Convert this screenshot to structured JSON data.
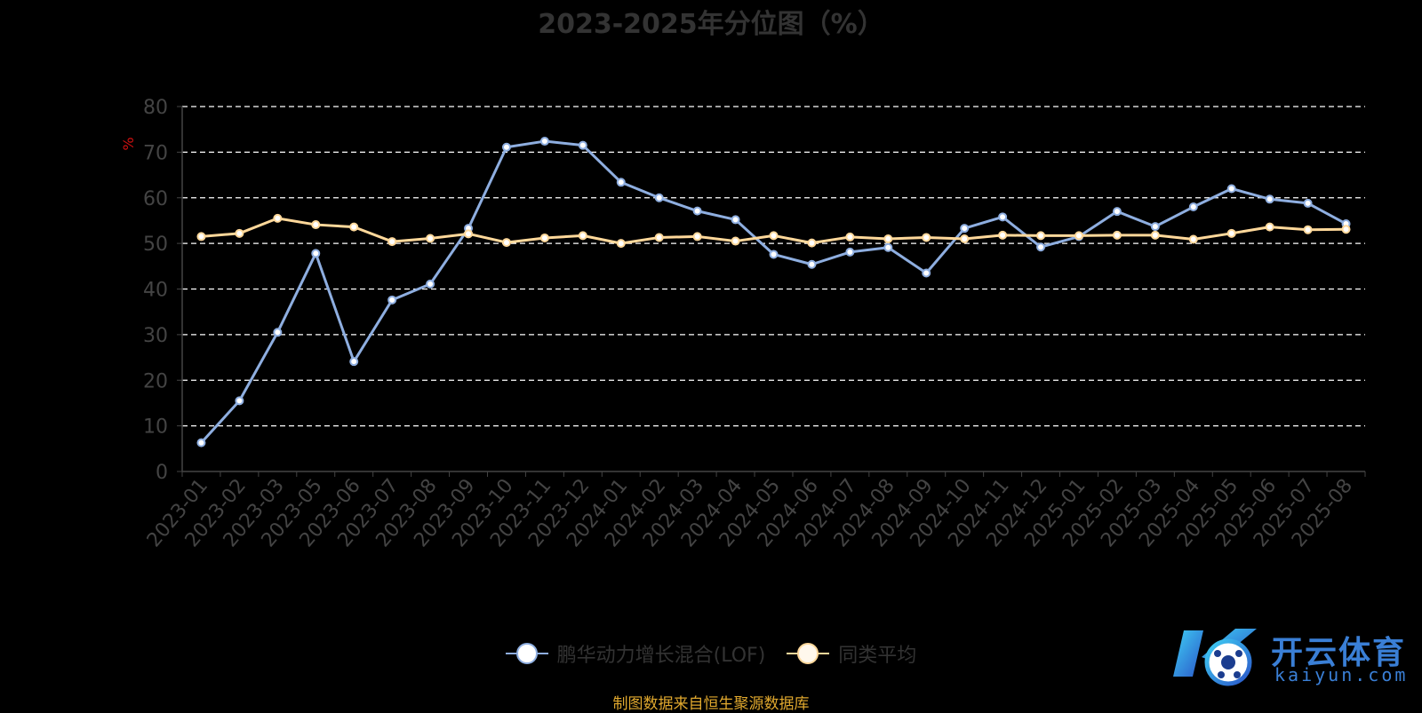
{
  "chart_data": {
    "type": "line",
    "title": "2023-2025年分位图（%）",
    "ylabel": "%",
    "xlabel": "",
    "ylim": [
      0,
      80
    ],
    "yticks": [
      0,
      10,
      20,
      30,
      40,
      50,
      60,
      70,
      80
    ],
    "grid": true,
    "legend_position": "bottom",
    "categories": [
      "2023-01",
      "2023-02",
      "2023-03",
      "2023-05",
      "2023-06",
      "2023-07",
      "2023-08",
      "2023-09",
      "2023-10",
      "2023-11",
      "2023-12",
      "2024-01",
      "2024-02",
      "2024-03",
      "2024-04",
      "2024-05",
      "2024-06",
      "2024-07",
      "2024-08",
      "2024-09",
      "2024-10",
      "2024-11",
      "2024-12",
      "2025-01",
      "2025-02",
      "2025-03",
      "2025-04",
      "2025-05",
      "2025-06",
      "2025-07",
      "2025-08"
    ],
    "series": [
      {
        "name": "鹏华动力增长混合(LOF)",
        "color": "#8eaee0",
        "values": [
          6.3,
          15.5,
          30.5,
          47.8,
          24.1,
          37.6,
          41.1,
          53.3,
          71.1,
          72.4,
          71.5,
          63.4,
          60.0,
          57.1,
          55.2,
          47.6,
          45.4,
          48.1,
          49.1,
          43.5,
          53.3,
          55.8,
          49.2,
          51.5,
          57.0,
          53.7,
          58.0,
          62.0,
          59.7,
          58.8,
          54.3
        ]
      },
      {
        "name": "同类平均",
        "color": "#ffd89a",
        "values": [
          51.5,
          52.2,
          55.5,
          54.1,
          53.6,
          50.4,
          51.1,
          52.1,
          50.2,
          51.2,
          51.7,
          50.0,
          51.3,
          51.5,
          50.5,
          51.7,
          50.1,
          51.4,
          51.0,
          51.3,
          51.0,
          51.8,
          51.7,
          51.7,
          51.8,
          51.8,
          50.9,
          52.2,
          53.6,
          53.0,
          53.1
        ]
      }
    ]
  },
  "source": "制图数据来自恒生聚源数据库",
  "logo": {
    "name": "开云体育",
    "domain": "kaiyun.com",
    "accent": "#3a7fd6"
  }
}
